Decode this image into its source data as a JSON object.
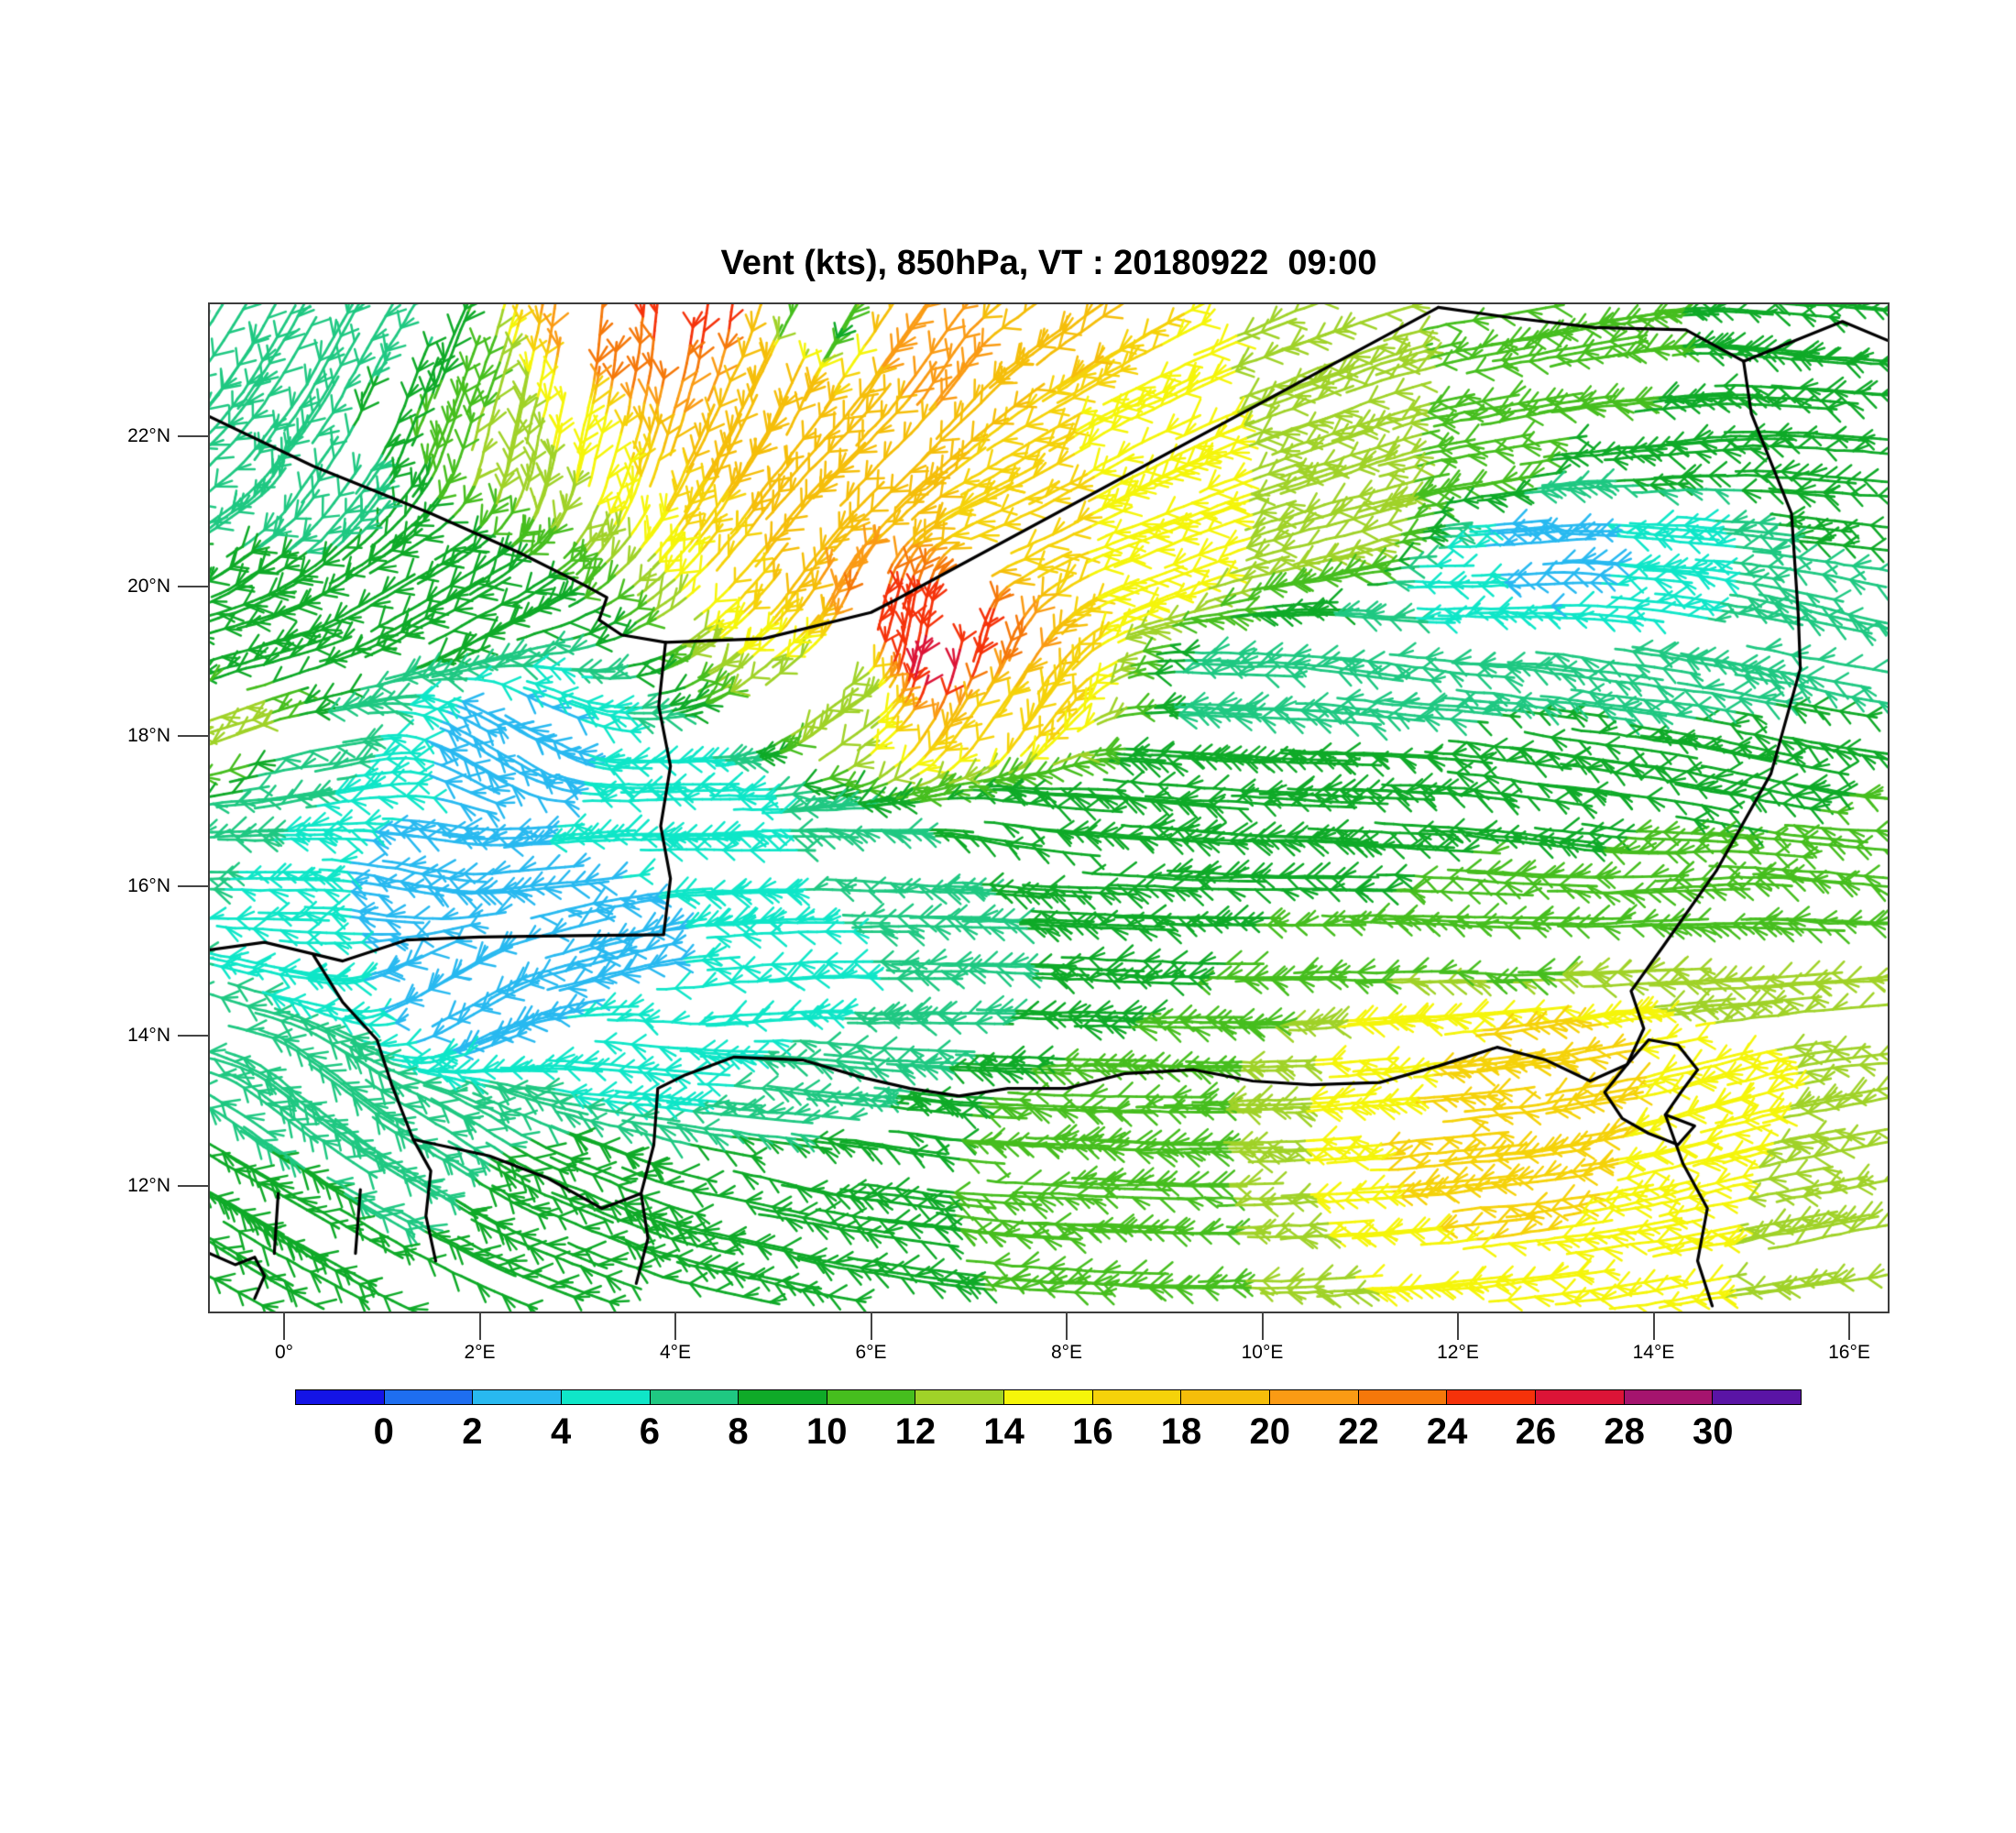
{
  "title": "Vent (kts), 850hPa, VT : 20180922  09:00",
  "axes": {
    "lat_ticks": [
      {
        "label": "22°N",
        "lat": 22
      },
      {
        "label": "20°N",
        "lat": 20
      },
      {
        "label": "18°N",
        "lat": 18
      },
      {
        "label": "16°N",
        "lat": 16
      },
      {
        "label": "14°N",
        "lat": 14
      },
      {
        "label": "12°N",
        "lat": 12
      }
    ],
    "lon_ticks": [
      {
        "label": "0°",
        "lon": 0
      },
      {
        "label": "2°E",
        "lon": 2
      },
      {
        "label": "4°E",
        "lon": 4
      },
      {
        "label": "6°E",
        "lon": 6
      },
      {
        "label": "8°E",
        "lon": 8
      },
      {
        "label": "10°E",
        "lon": 10
      },
      {
        "label": "12°E",
        "lon": 12
      },
      {
        "label": "14°E",
        "lon": 14
      },
      {
        "label": "16°E",
        "lon": 16
      }
    ]
  },
  "colorbar": {
    "tick_labels": [
      "0",
      "2",
      "4",
      "6",
      "8",
      "10",
      "12",
      "14",
      "16",
      "18",
      "20",
      "22",
      "24",
      "26",
      "28",
      "30"
    ],
    "colors": [
      "#1414E6",
      "#1E6EF0",
      "#28B9F0",
      "#0FE6C8",
      "#1FC882",
      "#0FAA28",
      "#46BE1E",
      "#A0D228",
      "#F5F50A",
      "#F5D20A",
      "#F5BE0A",
      "#FA9B14",
      "#F5780A",
      "#F5320A",
      "#DC1437",
      "#A5146E",
      "#5A14A5"
    ]
  },
  "chart_data": {
    "type": "wind_barb_map",
    "title": "Vent (kts), 850hPa, VT : 20180922  09:00",
    "variable": "Vent",
    "units": "kts",
    "pressure_level": "850hPa",
    "valid_time": "20180922 09:00",
    "lon_range": [
      -0.76,
      16.39
    ],
    "lat_range": [
      10.33,
      23.76
    ],
    "speed_levels": [
      0,
      2,
      4,
      6,
      8,
      10,
      12,
      14,
      16,
      18,
      20,
      22,
      24,
      26,
      28,
      30
    ],
    "speed_colors": [
      "#1414E6",
      "#1E6EF0",
      "#28B9F0",
      "#0FE6C8",
      "#1FC882",
      "#0FAA28",
      "#46BE1E",
      "#A0D228",
      "#F5F50A",
      "#F5D20A",
      "#F5BE0A",
      "#FA9B14",
      "#F5780A",
      "#F5320A",
      "#DC1437",
      "#A5146E",
      "#5A14A5"
    ],
    "wind_samples": [
      [
        3.5,
        23.4,
        265,
        24
      ],
      [
        4.3,
        23.6,
        262,
        25
      ],
      [
        5.0,
        22.8,
        245,
        20
      ],
      [
        2.5,
        22.2,
        258,
        14
      ],
      [
        1.6,
        22.6,
        250,
        10
      ],
      [
        0.9,
        23.4,
        240,
        6
      ],
      [
        0.3,
        21.5,
        235,
        7
      ],
      [
        -0.5,
        20.8,
        215,
        8
      ],
      [
        1.5,
        19.8,
        210,
        9
      ],
      [
        -0.5,
        19.0,
        195,
        9
      ],
      [
        -0.6,
        18.3,
        200,
        13
      ],
      [
        6.0,
        21.8,
        225,
        19
      ],
      [
        7.5,
        20.8,
        205,
        17
      ],
      [
        9.0,
        20.6,
        200,
        15
      ],
      [
        11.0,
        20.8,
        195,
        13
      ],
      [
        6.6,
        19.4,
        260,
        26
      ],
      [
        6.65,
        18.9,
        255,
        27
      ],
      [
        7.3,
        18.3,
        235,
        17
      ],
      [
        5.8,
        18.6,
        215,
        12
      ],
      [
        6.5,
        23.2,
        235,
        22
      ],
      [
        7.8,
        23.5,
        215,
        19
      ],
      [
        9.0,
        22.2,
        205,
        15
      ],
      [
        10.5,
        22.5,
        200,
        13
      ],
      [
        12.3,
        21.7,
        190,
        11
      ],
      [
        14.0,
        22.1,
        185,
        10
      ],
      [
        15.5,
        23.2,
        175,
        9
      ],
      [
        13.2,
        23.2,
        190,
        11
      ],
      [
        12.8,
        20.5,
        185,
        2
      ],
      [
        13.8,
        20.4,
        175,
        4
      ],
      [
        12.0,
        20.0,
        180,
        5
      ],
      [
        14.5,
        19.3,
        170,
        6
      ],
      [
        15.9,
        19.8,
        168,
        7
      ],
      [
        13.5,
        18.5,
        172,
        8
      ],
      [
        9.8,
        18.6,
        178,
        7
      ],
      [
        11.2,
        19.0,
        172,
        7
      ],
      [
        0.5,
        17.5,
        190,
        6
      ],
      [
        2.2,
        17.8,
        150,
        3
      ],
      [
        1.2,
        16.2,
        170,
        3
      ],
      [
        2.8,
        16.4,
        185,
        4
      ],
      [
        4.3,
        16.9,
        180,
        5
      ],
      [
        5.8,
        16.2,
        178,
        6
      ],
      [
        3.2,
        15.2,
        195,
        3
      ],
      [
        1.8,
        14.6,
        210,
        3
      ],
      [
        4.8,
        14.6,
        185,
        4
      ],
      [
        6.2,
        14.8,
        180,
        6
      ],
      [
        3.8,
        13.8,
        175,
        5
      ],
      [
        5.5,
        13.4,
        175,
        7
      ],
      [
        7.5,
        16.8,
        172,
        8
      ],
      [
        9.0,
        17.2,
        175,
        9
      ],
      [
        11.0,
        17.0,
        178,
        9
      ],
      [
        13.0,
        17.2,
        172,
        9
      ],
      [
        15.0,
        17.5,
        168,
        9
      ],
      [
        15.8,
        16.2,
        175,
        11
      ],
      [
        8.5,
        15.0,
        178,
        8
      ],
      [
        10.5,
        15.3,
        180,
        10
      ],
      [
        12.5,
        15.5,
        178,
        11
      ],
      [
        14.3,
        15.8,
        182,
        12
      ],
      [
        9.5,
        13.8,
        180,
        12
      ],
      [
        11.3,
        13.6,
        185,
        15
      ],
      [
        12.2,
        13.1,
        185,
        18
      ],
      [
        13.0,
        13.4,
        190,
        17
      ],
      [
        14.8,
        13.0,
        195,
        15
      ],
      [
        15.8,
        12.6,
        190,
        13
      ],
      [
        8.0,
        12.5,
        178,
        11
      ],
      [
        6.3,
        12.2,
        172,
        10
      ],
      [
        4.8,
        11.6,
        168,
        10
      ],
      [
        3.2,
        11.8,
        158,
        9
      ],
      [
        1.8,
        12.3,
        148,
        8
      ],
      [
        0.3,
        13.2,
        142,
        7
      ],
      [
        -0.6,
        11.8,
        150,
        9
      ],
      [
        -0.7,
        14.2,
        165,
        6
      ],
      [
        16.2,
        14.5,
        185,
        13
      ],
      [
        16.2,
        21.0,
        175,
        9
      ],
      [
        5.4,
        23.4,
        240,
        9
      ],
      [
        0.0,
        16.3,
        180,
        6
      ],
      [
        10.8,
        21.8,
        198,
        14
      ],
      [
        8.3,
        21.5,
        210,
        16
      ]
    ],
    "borders": [
      [
        [
          -0.76,
          22.26
        ],
        [
          0.3,
          21.6
        ],
        [
          1.5,
          20.97
        ],
        [
          2.4,
          20.45
        ],
        [
          3.09,
          20.0
        ]
      ],
      [
        [
          3.09,
          20.0
        ],
        [
          3.3,
          19.85
        ],
        [
          3.22,
          19.55
        ],
        [
          3.45,
          19.35
        ],
        [
          3.9,
          19.25
        ]
      ],
      [
        [
          3.9,
          19.25
        ],
        [
          4.9,
          19.3
        ],
        [
          6.0,
          19.65
        ],
        [
          6.27,
          19.83
        ],
        [
          11.8,
          23.72
        ]
      ],
      [
        [
          11.8,
          23.72
        ],
        [
          12.55,
          23.58
        ],
        [
          13.4,
          23.45
        ],
        [
          14.33,
          23.42
        ],
        [
          14.92,
          23.0
        ]
      ],
      [
        [
          14.92,
          23.0
        ],
        [
          15.93,
          23.53
        ],
        [
          16.39,
          23.28
        ]
      ],
      [
        [
          14.92,
          23.0
        ],
        [
          15.0,
          22.3
        ],
        [
          15.41,
          20.97
        ],
        [
          15.48,
          19.6
        ],
        [
          15.5,
          18.9
        ],
        [
          15.2,
          17.5
        ],
        [
          14.64,
          16.2
        ],
        [
          14.1,
          15.2
        ],
        [
          13.77,
          14.6
        ],
        [
          13.9,
          14.1
        ],
        [
          13.73,
          13.62
        ]
      ],
      [
        [
          13.73,
          13.62
        ],
        [
          13.95,
          13.95
        ],
        [
          14.25,
          13.88
        ],
        [
          14.45,
          13.55
        ],
        [
          14.28,
          13.25
        ],
        [
          14.12,
          12.95
        ],
        [
          14.42,
          12.8
        ],
        [
          14.25,
          12.55
        ],
        [
          13.95,
          12.7
        ],
        [
          13.68,
          12.9
        ],
        [
          13.5,
          13.25
        ],
        [
          13.73,
          13.62
        ]
      ],
      [
        [
          14.12,
          12.95
        ],
        [
          14.3,
          12.3
        ],
        [
          14.55,
          11.7
        ],
        [
          14.45,
          11.0
        ],
        [
          14.6,
          10.4
        ]
      ],
      [
        [
          3.9,
          19.25
        ],
        [
          3.83,
          18.4
        ],
        [
          3.95,
          17.6
        ],
        [
          3.85,
          16.8
        ],
        [
          3.95,
          16.1
        ],
        [
          3.88,
          15.35
        ],
        [
          3.0,
          15.34
        ],
        [
          2.0,
          15.32
        ],
        [
          1.25,
          15.28
        ],
        [
          0.6,
          15.0
        ],
        [
          -0.2,
          15.25
        ],
        [
          -0.76,
          15.15
        ]
      ],
      [
        [
          0.3,
          15.08
        ],
        [
          0.6,
          14.45
        ],
        [
          0.95,
          13.95
        ],
        [
          1.1,
          13.35
        ],
        [
          1.32,
          12.62
        ],
        [
          1.5,
          12.2
        ],
        [
          1.45,
          11.6
        ],
        [
          1.55,
          11.0
        ]
      ],
      [
        [
          1.32,
          12.62
        ],
        [
          2.1,
          12.4
        ],
        [
          2.7,
          12.1
        ],
        [
          3.25,
          11.7
        ],
        [
          3.65,
          11.9
        ],
        [
          3.78,
          12.55
        ],
        [
          3.82,
          13.3
        ],
        [
          4.1,
          13.48
        ],
        [
          4.6,
          13.72
        ],
        [
          5.3,
          13.68
        ],
        [
          5.9,
          13.45
        ],
        [
          6.4,
          13.3
        ],
        [
          6.9,
          13.2
        ],
        [
          7.4,
          13.3
        ],
        [
          8.0,
          13.3
        ],
        [
          8.6,
          13.5
        ],
        [
          9.3,
          13.55
        ],
        [
          9.9,
          13.4
        ],
        [
          10.5,
          13.35
        ],
        [
          11.2,
          13.38
        ],
        [
          11.8,
          13.6
        ],
        [
          12.4,
          13.85
        ],
        [
          12.9,
          13.68
        ],
        [
          13.35,
          13.4
        ],
        [
          13.73,
          13.62
        ]
      ],
      [
        [
          -0.06,
          11.9
        ],
        [
          -0.1,
          11.1
        ]
      ],
      [
        [
          0.78,
          11.95
        ],
        [
          0.73,
          11.1
        ]
      ],
      [
        [
          3.65,
          11.9
        ],
        [
          3.72,
          11.3
        ],
        [
          3.6,
          10.7
        ]
      ],
      [
        [
          -0.76,
          11.1
        ],
        [
          -0.5,
          10.95
        ],
        [
          -0.3,
          11.05
        ],
        [
          -0.2,
          10.8
        ],
        [
          -0.3,
          10.5
        ]
      ]
    ]
  }
}
